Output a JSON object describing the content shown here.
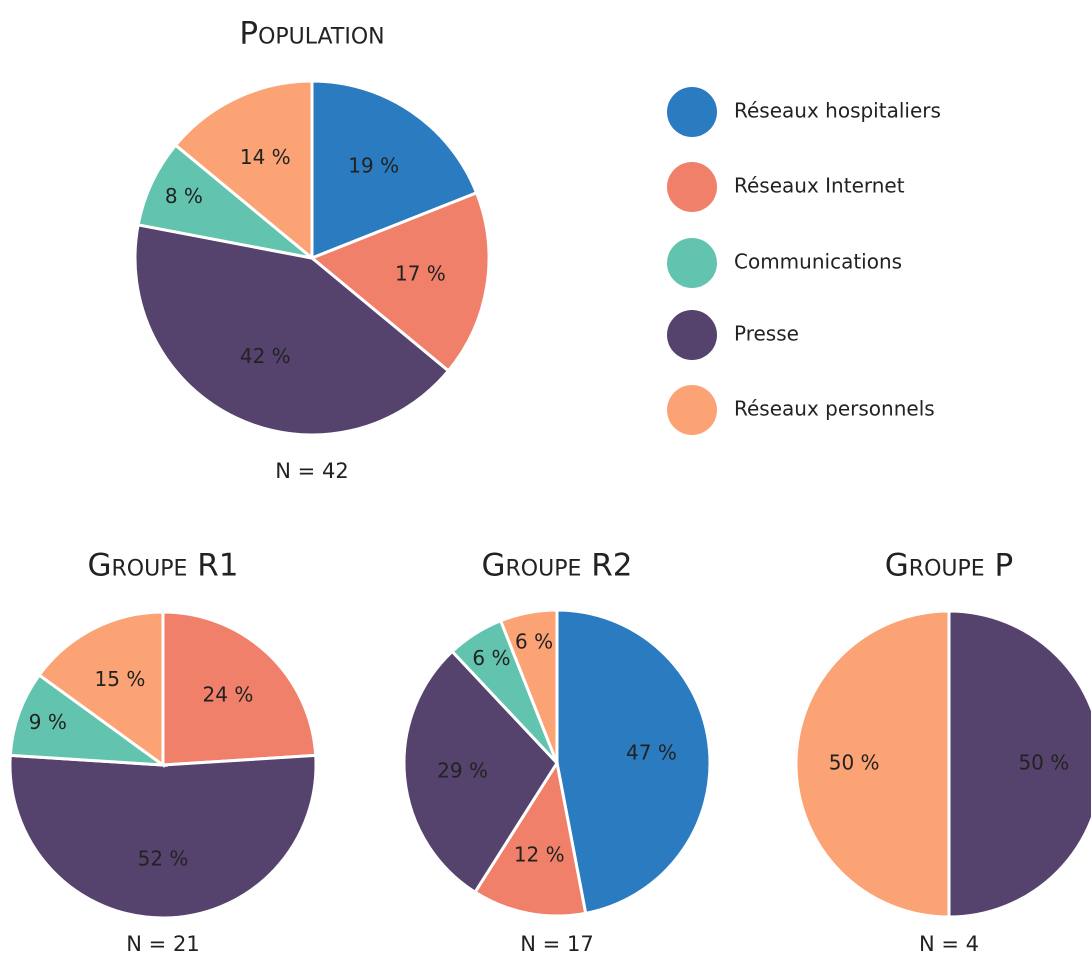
{
  "legend": [
    {
      "name": "Réseaux hospitaliers",
      "color": "#2b7bc0"
    },
    {
      "name": "Réseaux Internet",
      "color": "#f0806a"
    },
    {
      "name": "Communications",
      "color": "#62c4af"
    },
    {
      "name": "Presse",
      "color": "#55436e"
    },
    {
      "name": "Réseaux personnels",
      "color": "#fba374"
    }
  ],
  "chart_data": [
    {
      "type": "pie",
      "title": "Population",
      "subtitle": "N = 42",
      "values": [
        19,
        17,
        42,
        8,
        14
      ],
      "value_labels": [
        "19 %",
        "17 %",
        "42 %",
        "8 %",
        "14 %"
      ],
      "colors": [
        "#2b7bc0",
        "#f0806a",
        "#55436e",
        "#62c4af",
        "#fba374"
      ]
    },
    {
      "type": "pie",
      "title": "Groupe R1",
      "subtitle": "N = 21",
      "values": [
        24,
        52,
        9,
        15
      ],
      "value_labels": [
        "24 %",
        "52 %",
        "9 %",
        "15 %"
      ],
      "colors": [
        "#f0806a",
        "#55436e",
        "#62c4af",
        "#fba374"
      ]
    },
    {
      "type": "pie",
      "title": "Groupe R2",
      "subtitle": "N = 17",
      "values": [
        47,
        12,
        29,
        6,
        6
      ],
      "value_labels": [
        "47 %",
        "12 %",
        "29 %",
        "6 %",
        "6 %"
      ],
      "colors": [
        "#2b7bc0",
        "#f0806a",
        "#55436e",
        "#62c4af",
        "#fba374"
      ]
    },
    {
      "type": "pie",
      "title": "Groupe P",
      "subtitle": "N = 4",
      "values": [
        50,
        50
      ],
      "value_labels": [
        "50 %",
        "50 %"
      ],
      "colors": [
        "#55436e",
        "#fba374"
      ]
    }
  ]
}
